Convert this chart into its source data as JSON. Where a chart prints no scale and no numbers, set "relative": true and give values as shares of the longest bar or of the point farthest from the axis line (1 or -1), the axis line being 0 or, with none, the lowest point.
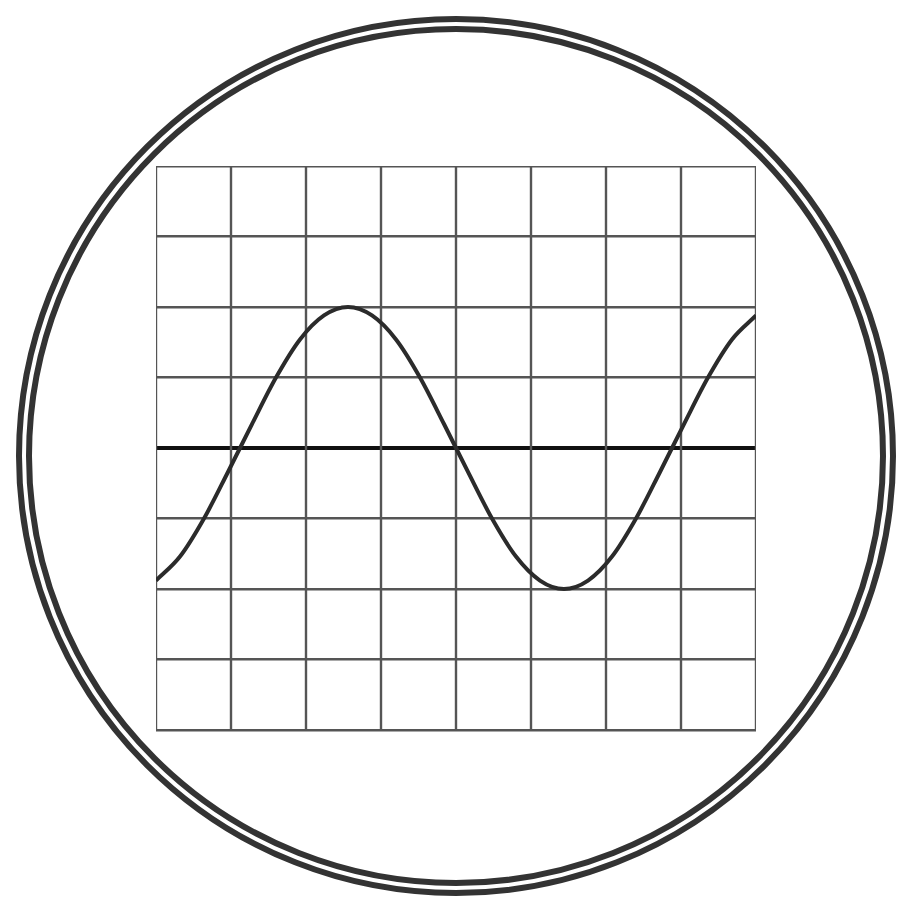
{
  "chart_data": {
    "type": "line",
    "relative": true,
    "categories": [
      null,
      null,
      null,
      null,
      null,
      null,
      null,
      null,
      null,
      null,
      null,
      null,
      null,
      null,
      null,
      null,
      null,
      null,
      null,
      null,
      null,
      null,
      null,
      null,
      null,
      null
    ],
    "series": [
      {
        "color": "#2b2b2b",
        "values": [
          -0.94,
          -0.77,
          -0.5,
          -0.17,
          0.17,
          0.5,
          0.77,
          0.94,
          1,
          0.94,
          0.77,
          0.5,
          0.17,
          -0.17,
          -0.5,
          -0.77,
          -0.94,
          -1,
          -0.94,
          -0.77,
          -0.5,
          -0.17,
          0.17,
          0.5,
          0.77,
          0.94
        ]
      }
    ],
    "grid": true,
    "marker": "none",
    "line_style": "solid"
  }
}
